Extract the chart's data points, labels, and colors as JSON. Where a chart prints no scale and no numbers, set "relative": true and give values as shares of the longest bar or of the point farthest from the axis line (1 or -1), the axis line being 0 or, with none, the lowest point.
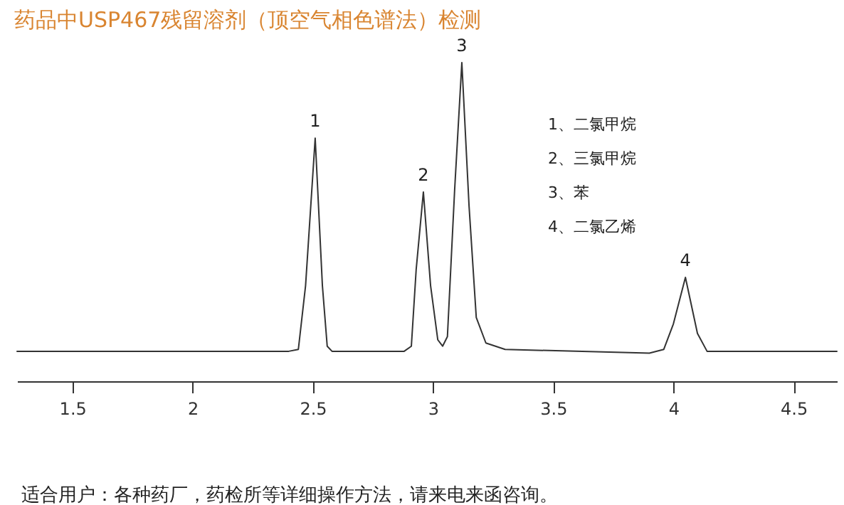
{
  "chart_data": {
    "type": "line",
    "title": "药品中USP467残留溶剂（顶空气相色谱法）检测",
    "relative": true,
    "xlim": [
      1.27,
      4.68
    ],
    "xticks": [
      1.5,
      2,
      2.5,
      3,
      3.5,
      4,
      4.5
    ],
    "grid": false,
    "annotations": [
      {
        "text": "1",
        "x": 2.51,
        "y": 0.763
      },
      {
        "text": "2",
        "x": 2.96,
        "y": 0.594
      },
      {
        "text": "3",
        "x": 3.12,
        "y": 1.0
      },
      {
        "text": "4",
        "x": 4.05,
        "y": 0.326
      },
      "1、二氯甲烷",
      "2、三氯甲烷",
      "3、苯",
      "4、二氯乙烯",
      "适合用户：各种药厂，药检所等详细操作方法，请来电来函咨询。"
    ],
    "series": [
      {
        "color": "#333333",
        "x": [
          1.27,
          2.4,
          2.44,
          2.47,
          2.51,
          2.54,
          2.56,
          2.58,
          2.88,
          2.91,
          2.93,
          2.96,
          2.99,
          3.02,
          3.04,
          3.06,
          3.09,
          3.12,
          3.15,
          3.18,
          3.22,
          3.3,
          3.9,
          3.96,
          4.0,
          4.05,
          4.1,
          4.14,
          4.68
        ],
        "values": [
          0.094,
          0.094,
          0.1,
          0.3,
          0.763,
          0.3,
          0.11,
          0.094,
          0.094,
          0.11,
          0.35,
          0.594,
          0.3,
          0.13,
          0.11,
          0.14,
          0.6,
          1.0,
          0.55,
          0.2,
          0.12,
          0.1,
          0.088,
          0.1,
          0.18,
          0.326,
          0.15,
          0.094,
          0.094
        ]
      }
    ]
  }
}
